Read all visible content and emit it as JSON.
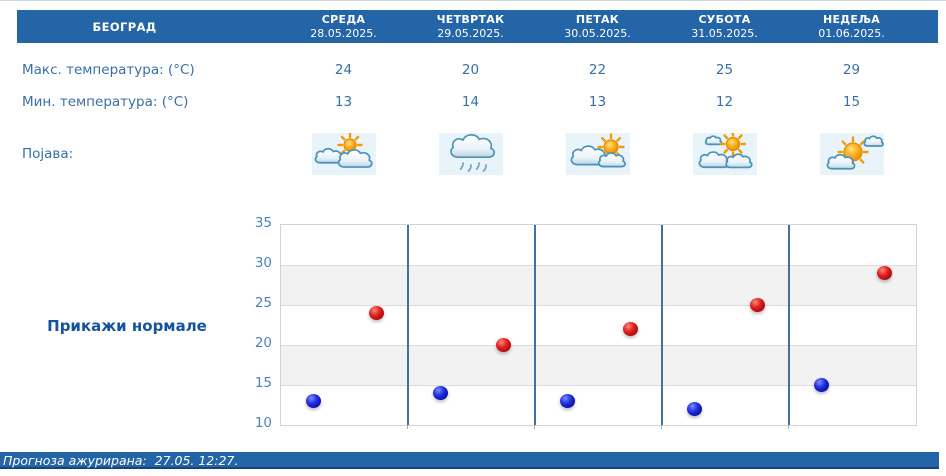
{
  "header": {
    "city": "БЕОГРАД",
    "days": [
      {
        "name": "СРЕДА",
        "date": "28.05.2025."
      },
      {
        "name": "ЧЕТВРТАК",
        "date": "29.05.2025."
      },
      {
        "name": "ПЕТАК",
        "date": "30.05.2025."
      },
      {
        "name": "СУБОТА",
        "date": "31.05.2025."
      },
      {
        "name": "НЕДЕЉА",
        "date": "01.06.2025."
      }
    ]
  },
  "forecast": {
    "max_label": "Макс. температура: (°C)",
    "max_values": [
      24,
      20,
      22,
      25,
      29
    ],
    "min_label": "Мин. температура: (°C)",
    "min_values": [
      13,
      14,
      13,
      12,
      15
    ],
    "phenomenon_label": "Појава:",
    "icons": [
      "sun-behind-clouds",
      "rain-cloud",
      "clouds-with-sun",
      "sun-above-clouds",
      "sun-with-clouds"
    ]
  },
  "chart": {
    "normals_label": "Прикажи нормале"
  },
  "chart_data": {
    "type": "scatter",
    "title": "",
    "categories": [
      "28.05.2025.",
      "29.05.2025.",
      "30.05.2025.",
      "31.05.2025.",
      "01.06.2025."
    ],
    "series": [
      {
        "name": "Макс. температура (°C)",
        "color": "#cc1111",
        "values": [
          24,
          20,
          22,
          25,
          29
        ]
      },
      {
        "name": "Мин. температура (°C)",
        "color": "#1423cc",
        "values": [
          13,
          14,
          13,
          12,
          15
        ]
      }
    ],
    "ylim": [
      10,
      35
    ],
    "ytick_step": 5,
    "grid": true,
    "legend": "none",
    "band_colors": [
      "#ffffff",
      "#f2f2f2"
    ],
    "separator_color": "#41719c"
  },
  "footer": {
    "updated": "Прогноза ажурирана:  27.05. 12:27."
  },
  "colors": {
    "accent_blue": "#2465a8",
    "text_blue": "#3a6fa5",
    "link_blue": "#1553a0",
    "tick_blue": "#4f81bd"
  }
}
